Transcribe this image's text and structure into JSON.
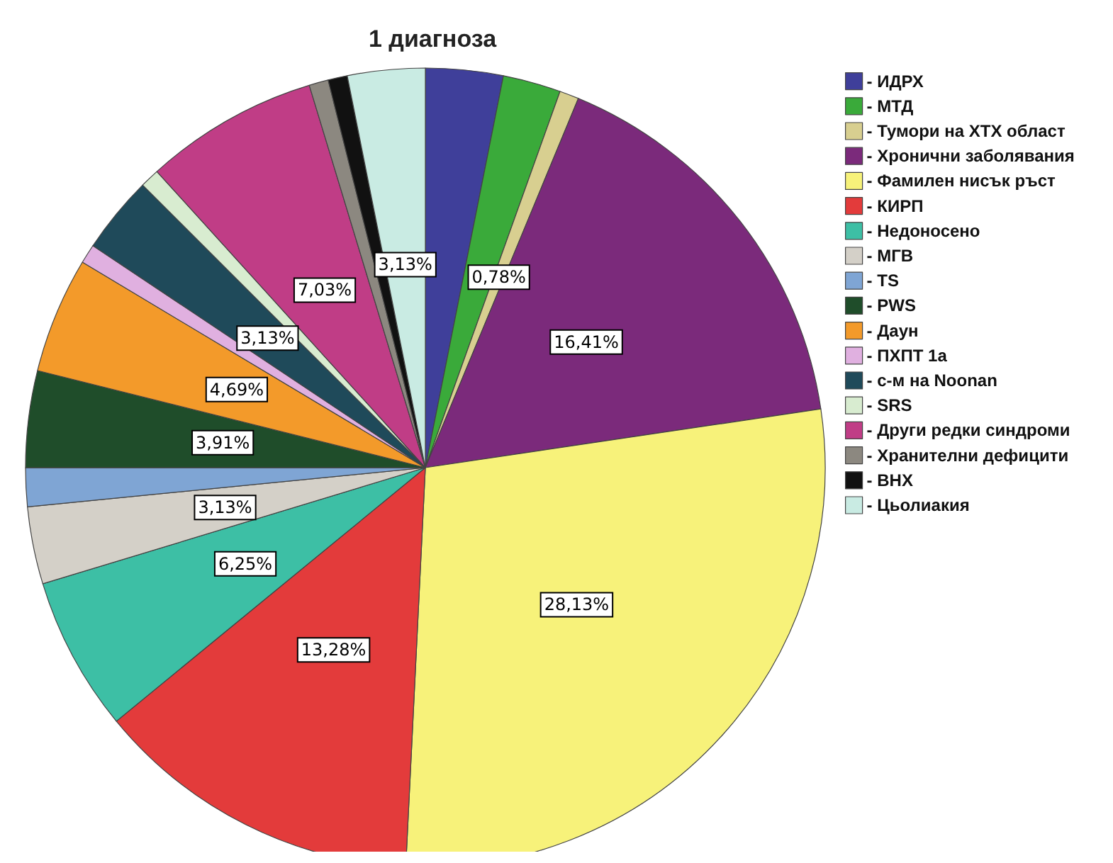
{
  "chart_data": {
    "type": "pie",
    "title": "1 диагноза",
    "categories": [
      "- ИДРХ",
      "- МТД",
      "- Тумори на ХТХ област",
      "- Хронични заболявания",
      "- Фамилен нисък ръст",
      "- КИРП",
      "- Недоносено",
      "- МГВ",
      "- TS",
      "- PWS",
      "- Даун",
      "- ПХПТ 1а",
      "- с-м на Noonan",
      "- SRS",
      "- Други редки синдроми",
      "- Хранителни дефицити",
      "- ВНХ",
      "- Цьолиакия"
    ],
    "values": [
      3.13,
      2.34,
      0.78,
      16.41,
      28.13,
      13.28,
      6.25,
      3.13,
      1.56,
      3.91,
      4.69,
      0.78,
      3.13,
      0.78,
      7.03,
      0.78,
      0.78,
      3.13
    ],
    "value_labels": [
      null,
      null,
      "0,78%",
      "16,41%",
      "28,13%",
      "13,28%",
      "6,25%",
      "3,13%",
      null,
      "3,91%",
      "4,69%",
      null,
      "3,13%",
      null,
      "7,03%",
      null,
      null,
      "3,13%"
    ],
    "colors": [
      "#3f3f9a",
      "#3aaa3a",
      "#d8cf90",
      "#7b2a7b",
      "#f7f27a",
      "#e33b3b",
      "#3dbfa5",
      "#d4d0c8",
      "#7fa5d4",
      "#1f4d2a",
      "#f39a2a",
      "#e0b0e0",
      "#1f4a5a",
      "#d8ecd0",
      "#c03d86",
      "#8c8880",
      "#111111",
      "#c9ebe3"
    ],
    "legend": "top right"
  }
}
